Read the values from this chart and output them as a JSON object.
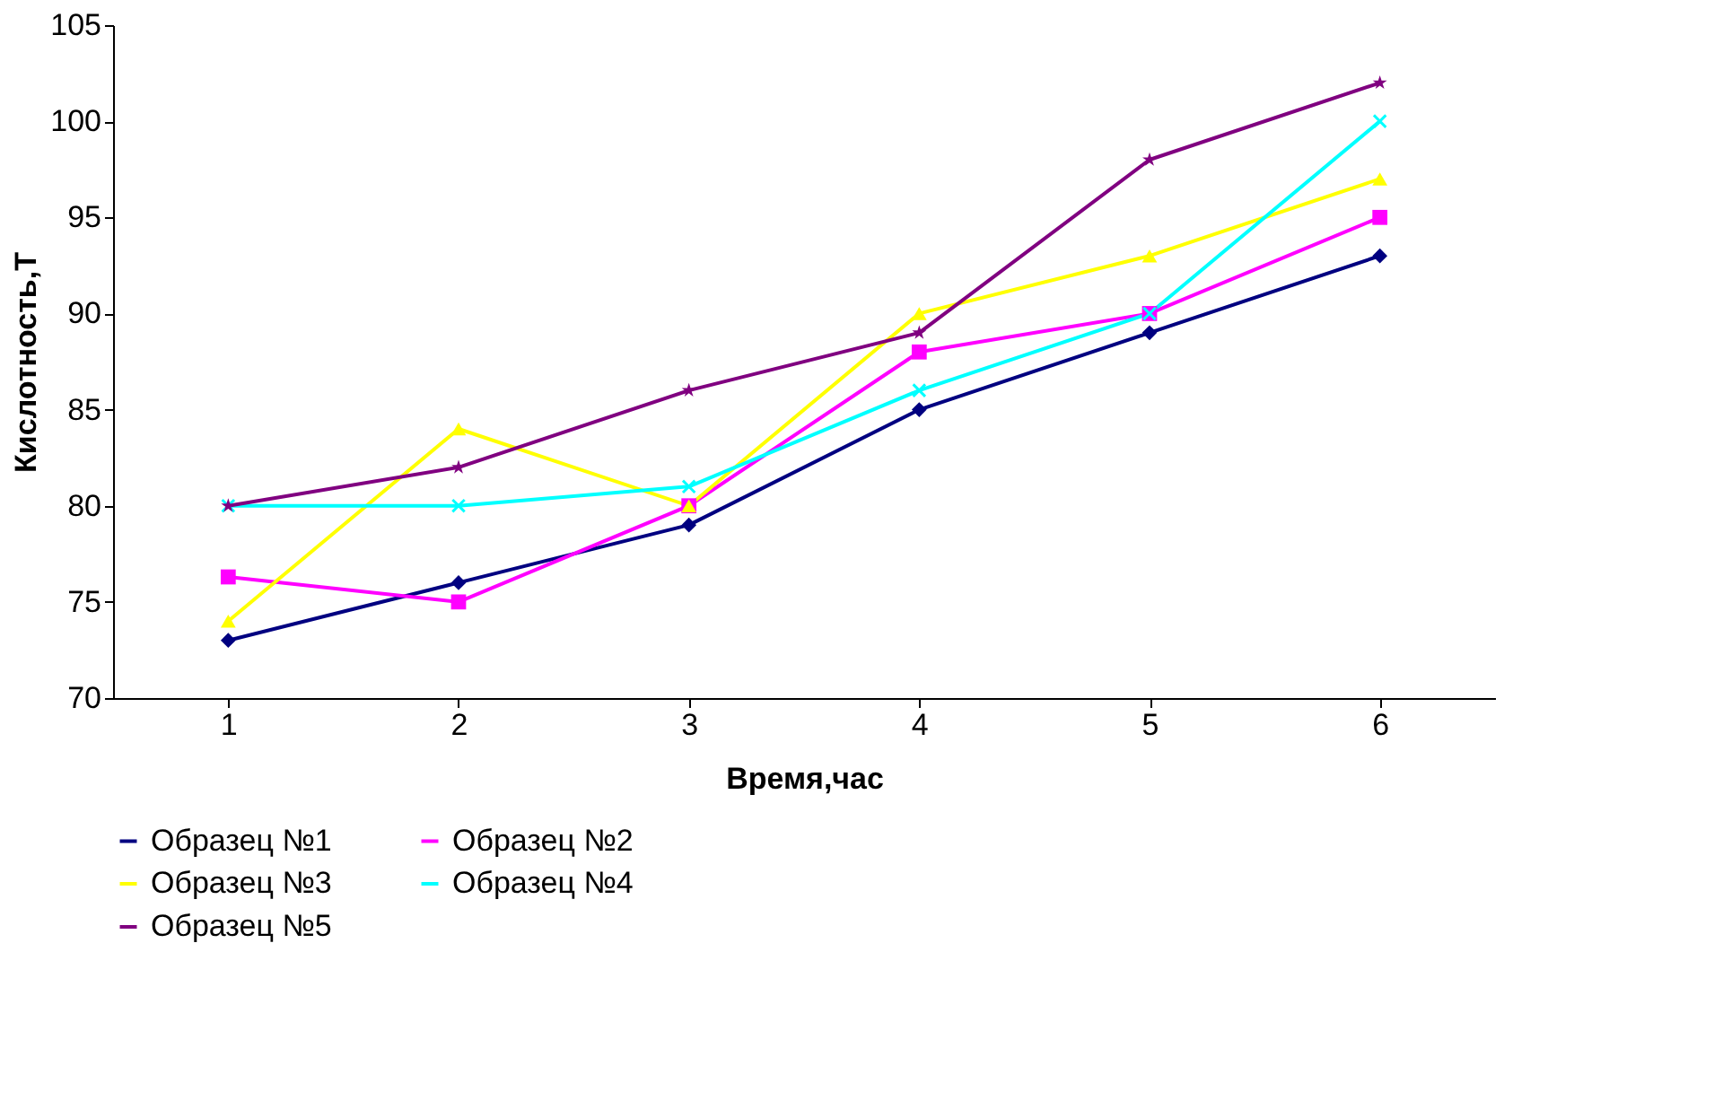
{
  "chart_data": {
    "type": "line",
    "xlabel": "Время,час",
    "ylabel": "Кислотность,Т",
    "categories": [
      "1",
      "2",
      "3",
      "4",
      "5",
      "6"
    ],
    "ylim": [
      70,
      105
    ],
    "yticks": [
      70,
      75,
      80,
      85,
      90,
      95,
      100,
      105
    ],
    "grid": false,
    "legend": "bottom",
    "line_style": "solid",
    "series": [
      {
        "name": "Образец №1",
        "color": "#000080",
        "marker": "diamond",
        "values": [
          73,
          76,
          79,
          85,
          89,
          93
        ]
      },
      {
        "name": "Образец  №2",
        "color": "#ff00ff",
        "marker": "square",
        "values": [
          76.3,
          75,
          80,
          88,
          90,
          95
        ]
      },
      {
        "name": "Образец  №3",
        "color": "#ffff00",
        "marker": "triangle",
        "values": [
          74,
          84,
          80,
          90,
          93,
          97
        ]
      },
      {
        "name": "Образец №4",
        "color": "#00ffff",
        "marker": "cross",
        "values": [
          80,
          80,
          81,
          86,
          90,
          100
        ]
      },
      {
        "name": "Образец №5",
        "color": "#800080",
        "marker": "star",
        "values": [
          80,
          82,
          86,
          89,
          98,
          102
        ]
      }
    ]
  }
}
